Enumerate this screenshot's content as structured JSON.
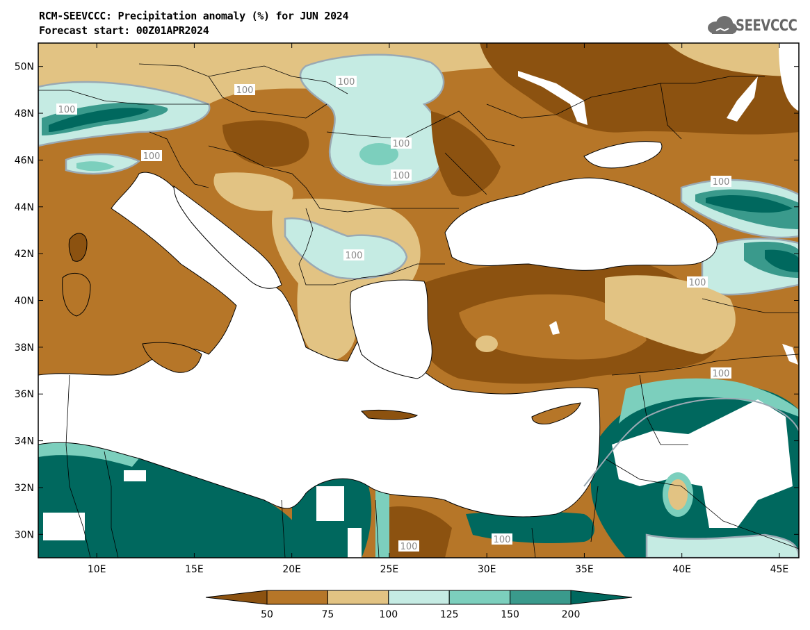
{
  "header": {
    "title_line1": "RCM-SEEVCCC: Precipitation anomaly (%) for JUN 2024",
    "title_line2": "Forecast start: 00Z01APR2024",
    "logo_text": "SEEVCCC"
  },
  "map": {
    "lon_range": [
      7,
      46
    ],
    "lat_range": [
      29,
      51
    ],
    "x_ticks": [
      "10E",
      "15E",
      "20E",
      "25E",
      "30E",
      "35E",
      "40E",
      "45E"
    ],
    "y_ticks": [
      "50N",
      "48N",
      "46N",
      "44N",
      "42N",
      "40N",
      "38N",
      "36N",
      "34N",
      "32N",
      "30N"
    ],
    "contour_labels": [
      "100",
      "100",
      "100",
      "100",
      "100",
      "100",
      "100",
      "100",
      "100",
      "100",
      "100",
      "100"
    ]
  },
  "colorbar": {
    "labels": [
      "50",
      "75",
      "100",
      "125",
      "150",
      "200"
    ],
    "colors": [
      "#8c5210",
      "#b67628",
      "#e2c383",
      "#c5ebe3",
      "#7ccfbd",
      "#3a9a8c",
      "#00685e"
    ],
    "bins": [
      "<50",
      "50-75",
      "75-100",
      "100-125",
      "125-150",
      "150-200",
      ">200"
    ]
  },
  "colors": {
    "sea": "#ffffff",
    "land_default": "#b67628"
  }
}
